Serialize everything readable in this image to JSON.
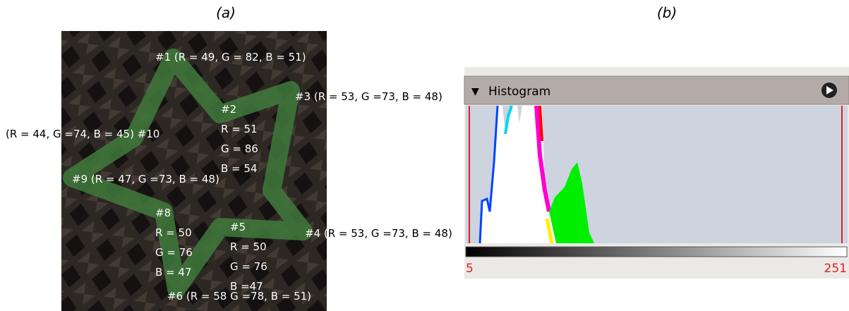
{
  "panel_a": {
    "label": "(a)",
    "annotations": [
      {
        "lines": [
          "#1 (R = 49, G = 82, B = 51)"
        ]
      },
      {
        "lines": [
          "#2",
          "R = 51",
          "G = 86",
          "B = 54"
        ]
      },
      {
        "lines": [
          "#3 (R = 53, G =73, B = 48)"
        ]
      },
      {
        "lines": [
          "#4 (R = 53, G =73, B = 48)"
        ]
      },
      {
        "lines": [
          "#5",
          "R = 50",
          "G = 76",
          "B =47"
        ]
      },
      {
        "lines": [
          "#6 (R = 58 G =78, B = 51)"
        ]
      },
      {
        "lines": [
          "#8",
          "R = 50",
          "G = 76",
          "B = 47"
        ]
      },
      {
        "lines": [
          "#9 (R = 47, G =73, B = 48)"
        ]
      },
      {
        "lines": [
          "(R = 44, G =74, B = 45) #10"
        ]
      }
    ]
  },
  "panel_b": {
    "label": "(b)",
    "title": "Histogram",
    "min_label": "5",
    "max_label": "251"
  }
}
